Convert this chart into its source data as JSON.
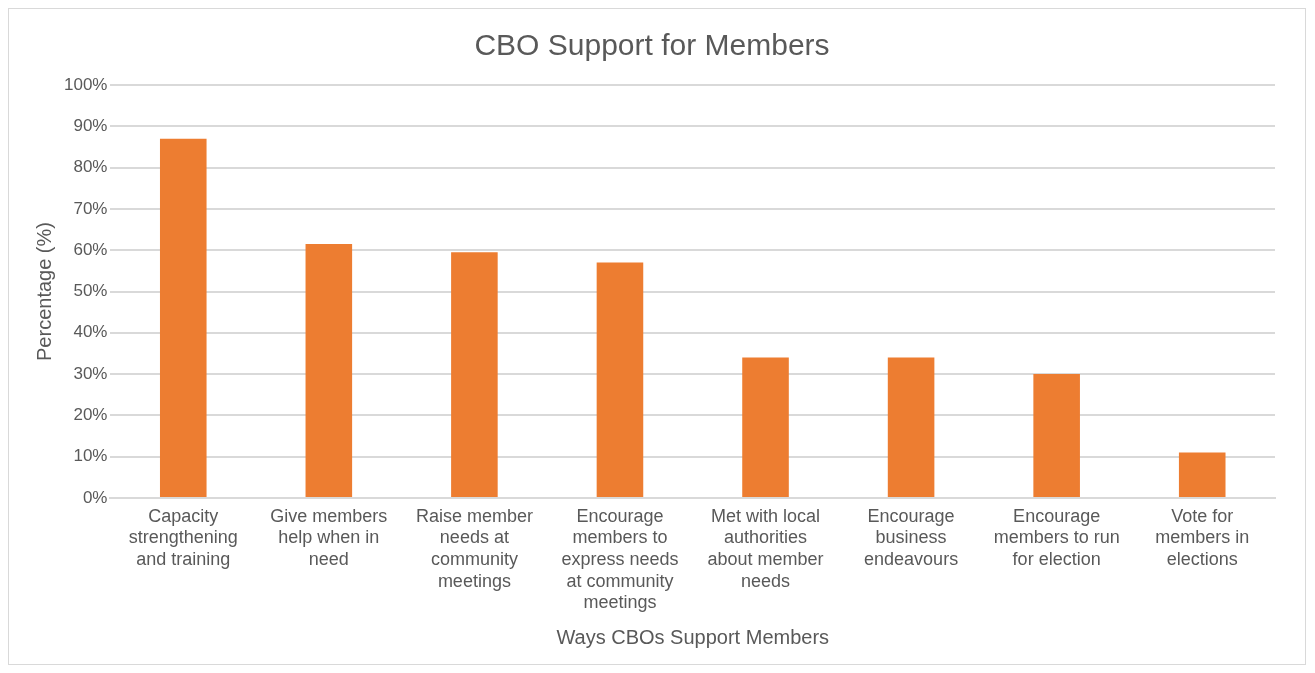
{
  "chart_data": {
    "type": "bar",
    "title": "CBO Support for Members",
    "xlabel": "Ways CBOs Support Members",
    "ylabel": "Percentage (%)",
    "categories": [
      "Capacity strengthening and training",
      "Give members help when in need",
      "Raise member needs at community meetings",
      "Encourage members to express needs at community meetings",
      "Met with local authorities about member needs",
      "Encourage business endeavours",
      "Encourage members to run for election",
      "Vote for members in elections"
    ],
    "values": [
      87,
      61.5,
      59.5,
      57,
      34,
      34,
      30,
      11
    ],
    "color": "#ed7d31",
    "ylim": [
      0,
      100
    ],
    "yticks": [
      {
        "value": 0,
        "label": "0%"
      },
      {
        "value": 10,
        "label": "10%"
      },
      {
        "value": 20,
        "label": "20%"
      },
      {
        "value": 30,
        "label": "30%"
      },
      {
        "value": 40,
        "label": "40%"
      },
      {
        "value": 50,
        "label": "50%"
      },
      {
        "value": 60,
        "label": "60%"
      },
      {
        "value": 70,
        "label": "70%"
      },
      {
        "value": 80,
        "label": "80%"
      },
      {
        "value": 90,
        "label": "90%"
      },
      {
        "value": 100,
        "label": "100%"
      }
    ],
    "grid": "y",
    "legend": false
  }
}
